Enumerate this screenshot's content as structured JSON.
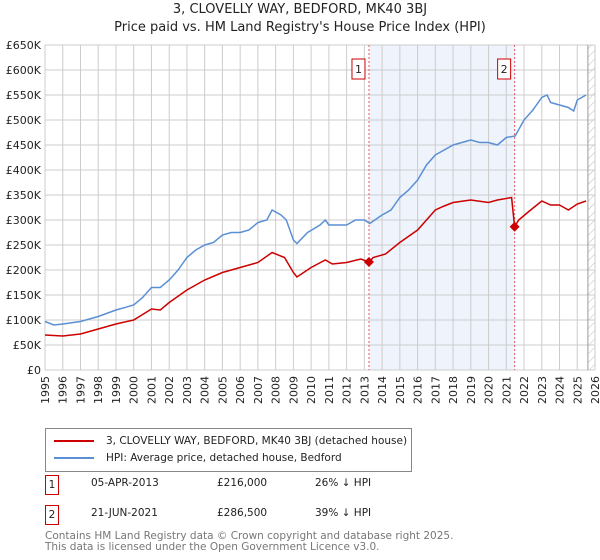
{
  "chart_data": {
    "type": "line",
    "title": "3, CLOVELLY WAY, BEDFORD, MK40 3BJ",
    "subtitle": "Price paid vs. HM Land Registry's House Price Index (HPI)",
    "xlim": [
      1995,
      2026
    ],
    "ylim": [
      0,
      650000
    ],
    "x_ticks": [
      "1995",
      "1996",
      "1997",
      "1998",
      "1999",
      "2000",
      "2001",
      "2002",
      "2003",
      "2004",
      "2005",
      "2006",
      "2007",
      "2008",
      "2009",
      "2010",
      "2011",
      "2012",
      "2013",
      "2014",
      "2015",
      "2016",
      "2017",
      "2018",
      "2019",
      "2020",
      "2021",
      "2022",
      "2023",
      "2024",
      "2025",
      "2026"
    ],
    "y_ticks": [
      {
        "v": 0,
        "label": "£0"
      },
      {
        "v": 50000,
        "label": "£50K"
      },
      {
        "v": 100000,
        "label": "£100K"
      },
      {
        "v": 150000,
        "label": "£150K"
      },
      {
        "v": 200000,
        "label": "£200K"
      },
      {
        "v": 250000,
        "label": "£250K"
      },
      {
        "v": 300000,
        "label": "£300K"
      },
      {
        "v": 350000,
        "label": "£350K"
      },
      {
        "v": 400000,
        "label": "£400K"
      },
      {
        "v": 450000,
        "label": "£450K"
      },
      {
        "v": 500000,
        "label": "£500K"
      },
      {
        "v": 550000,
        "label": "£550K"
      },
      {
        "v": 600000,
        "label": "£600K"
      },
      {
        "v": 650000,
        "label": "£650K"
      }
    ],
    "grid": true,
    "forecast_hatch_from": 2025.6,
    "series": [
      {
        "name": "3, CLOVELLY WAY, BEDFORD, MK40 3BJ (detached house)",
        "color": "#cc0000",
        "x": [
          1995,
          1996,
          1997,
          1998,
          1999,
          2000,
          2001,
          2001.5,
          2002,
          2003,
          2004,
          2005,
          2005.5,
          2006,
          2007,
          2007.8,
          2008.5,
          2009,
          2009.2,
          2010,
          2010.8,
          2011.2,
          2012,
          2012.8,
          2013.26,
          2013.5,
          2014.2,
          2015,
          2016,
          2016.5,
          2017,
          2017.5,
          2018,
          2019,
          2020,
          2020.5,
          2021.3,
          2021.47,
          2021.7,
          2022.3,
          2023,
          2023.5,
          2024,
          2024.5,
          2025,
          2025.5
        ],
        "y": [
          70,
          68,
          72,
          82,
          92,
          100,
          122,
          120,
          135,
          160,
          180,
          195,
          200,
          205,
          215,
          235,
          225,
          195,
          186,
          205,
          220,
          212,
          215,
          222,
          216,
          225,
          232,
          255,
          280,
          300,
          320,
          328,
          335,
          340,
          335,
          340,
          345,
          286.5,
          300,
          318,
          338,
          330,
          330,
          320,
          332,
          338
        ]
      },
      {
        "name": "HPI: Average price, detached house, Bedford",
        "color": "#5b8fd4",
        "x": [
          1995,
          1995.5,
          1996,
          1997,
          1998,
          1999,
          2000,
          2000.5,
          2001,
          2001.5,
          2002,
          2002.5,
          2003,
          2003.5,
          2004,
          2004.5,
          2005,
          2005.5,
          2006,
          2006.5,
          2007,
          2007.5,
          2007.8,
          2008.3,
          2008.6,
          2009,
          2009.2,
          2009.8,
          2010.5,
          2010.8,
          2011,
          2012,
          2012.5,
          2013,
          2013.3,
          2014,
          2014.5,
          2015,
          2015.5,
          2016,
          2016.5,
          2017,
          2017.5,
          2018,
          2018.5,
          2019,
          2019.5,
          2020,
          2020.5,
          2021,
          2021.5,
          2022,
          2022.5,
          2023,
          2023.3,
          2023.5,
          2024,
          2024.5,
          2024.8,
          2025,
          2025.5
        ],
        "y": [
          97,
          90,
          92,
          97,
          107,
          120,
          130,
          145,
          165,
          165,
          180,
          200,
          225,
          240,
          250,
          255,
          270,
          275,
          275,
          280,
          295,
          300,
          320,
          310,
          300,
          260,
          253,
          275,
          290,
          300,
          290,
          290,
          300,
          300,
          293,
          310,
          320,
          345,
          360,
          380,
          410,
          430,
          440,
          450,
          455,
          460,
          455,
          455,
          450,
          465,
          468,
          500,
          520,
          545,
          550,
          535,
          530,
          525,
          518,
          540,
          550
        ]
      }
    ],
    "sales": [
      {
        "id": "1",
        "x": 2013.26,
        "y": 216,
        "date": "05-APR-2013",
        "price": "£216,000",
        "hpi": "26% ↓ HPI"
      },
      {
        "id": "2",
        "x": 2021.47,
        "y": 286.5,
        "date": "21-JUN-2021",
        "price": "£286,500",
        "hpi": "39% ↓ HPI"
      }
    ],
    "y_unit": "thousands GBP"
  },
  "footer": {
    "line1": "Contains HM Land Registry data © Crown copyright and database right 2025.",
    "line2": "This data is licensed under the Open Government Licence v3.0."
  }
}
